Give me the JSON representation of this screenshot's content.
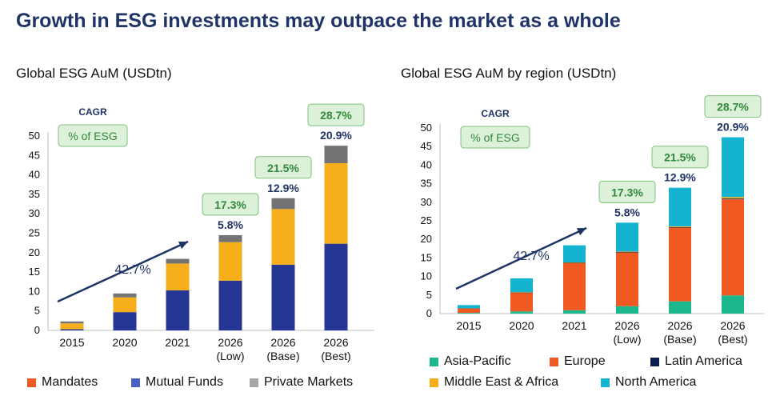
{
  "page": {
    "title": "Growth in ESG investments may outpace the market as a whole"
  },
  "colors": {
    "mandates": "#F7AE1B",
    "mutual_funds": "#253593",
    "private_markets": "#737373",
    "asia_pacific": "#1CB88C",
    "europe": "#F05A22",
    "latin_america": "#0B1F4B",
    "mea": "#F7AE1B",
    "north_america": "#14B3D0",
    "badge_fill": "#DDF0DA",
    "badge_border": "#7CC27A",
    "badge_text": "#2E8B3A",
    "cagr_text": "#1F3466",
    "arrow": "#1F3466"
  },
  "chart_data": [
    {
      "type": "bar",
      "stacked": true,
      "title": "Global ESG AuM (USDtn)",
      "categories": [
        [
          "2015"
        ],
        [
          "2020"
        ],
        [
          "2021"
        ],
        [
          "2026",
          "(Low)"
        ],
        [
          "2026",
          "(Base)"
        ],
        [
          "2026",
          "(Best)"
        ]
      ],
      "yticks": [
        0,
        5,
        10,
        15,
        20,
        25,
        30,
        35,
        40,
        45,
        50
      ],
      "ylim": [
        0,
        50
      ],
      "grid": false,
      "series": [
        {
          "key": "mutual_funds",
          "name": "Mutual Funds",
          "values": [
            0.3,
            4.7,
            10.3,
            12.8,
            16.9,
            22.3
          ]
        },
        {
          "key": "mandates",
          "name": "Mandates",
          "values": [
            1.5,
            3.8,
            6.9,
            9.9,
            14.3,
            20.7
          ]
        },
        {
          "key": "private_markets",
          "name": "Private Markets",
          "values": [
            0.5,
            1.0,
            1.2,
            1.8,
            2.8,
            4.5
          ]
        }
      ],
      "legend": [
        {
          "label": "Mandates",
          "color": "#F05A22"
        },
        {
          "label": "Mutual Funds",
          "color": "#4A5FC1"
        },
        {
          "label": "Private Markets",
          "color": "#A6A6A6"
        }
      ],
      "annotations": {
        "cagr_header": "CAGR",
        "pct_of_esg_label": "% of ESG",
        "trend_label": "42.7%",
        "cagr_values": [
          "5.8%",
          "12.9%",
          "20.9%"
        ],
        "pct_of_esg_values": [
          "17.3%",
          "21.5%",
          "28.7%"
        ]
      }
    },
    {
      "type": "bar",
      "stacked": true,
      "title": "Global ESG AuM by region (USDtn)",
      "categories": [
        [
          "2015"
        ],
        [
          "2020"
        ],
        [
          "2021"
        ],
        [
          "2026",
          "(Low)"
        ],
        [
          "2026",
          "(Base)"
        ],
        [
          "2026",
          "(Best)"
        ]
      ],
      "yticks": [
        0,
        5,
        10,
        15,
        20,
        25,
        30,
        35,
        40,
        45,
        50
      ],
      "ylim": [
        0,
        50
      ],
      "grid": false,
      "series": [
        {
          "key": "asia_pacific",
          "name": "Asia-Pacific",
          "values": [
            0.2,
            0.6,
            0.9,
            2.0,
            3.3,
            4.9
          ]
        },
        {
          "key": "europe",
          "name": "Europe",
          "values": [
            1.2,
            5.0,
            12.7,
            14.5,
            19.9,
            25.9
          ]
        },
        {
          "key": "latin_america",
          "name": "Latin America",
          "values": [
            0.0,
            0.1,
            0.1,
            0.1,
            0.1,
            0.2
          ]
        },
        {
          "key": "mea",
          "name": "Middle East & Africa",
          "values": [
            0.0,
            0.1,
            0.1,
            0.1,
            0.2,
            0.4
          ]
        },
        {
          "key": "north_america",
          "name": "North America",
          "values": [
            0.9,
            3.7,
            4.6,
            7.8,
            10.4,
            16.1
          ]
        }
      ],
      "legend": [
        {
          "label": "Asia-Pacific",
          "color": "#1CB88C"
        },
        {
          "label": "Europe",
          "color": "#F05A22"
        },
        {
          "label": "Latin America",
          "color": "#0B1F4B"
        },
        {
          "label": "Middle East & Africa",
          "color": "#F7AE1B"
        },
        {
          "label": "North America",
          "color": "#14B3D0"
        }
      ],
      "annotations": {
        "cagr_header": "CAGR",
        "pct_of_esg_label": "% of ESG",
        "trend_label": "42.7%",
        "cagr_values": [
          "5.8%",
          "12.9%",
          "20.9%"
        ],
        "pct_of_esg_values": [
          "17.3%",
          "21.5%",
          "28.7%"
        ]
      }
    }
  ]
}
